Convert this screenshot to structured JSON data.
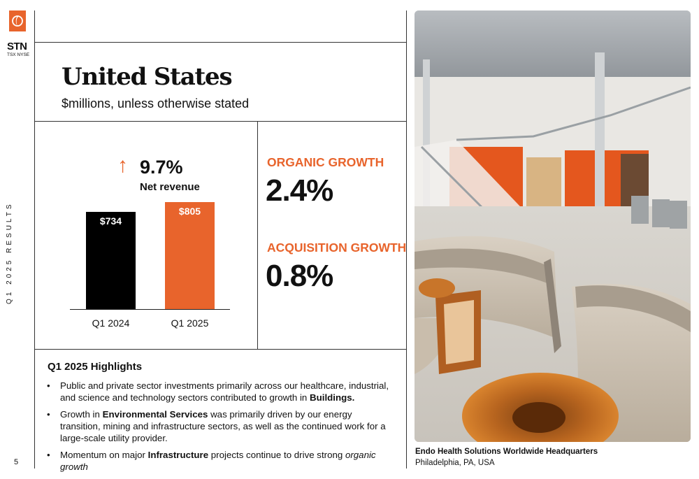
{
  "brand": {
    "ticker": "STN",
    "exchanges": "TSX NYSE",
    "accent_color": "#e8642c",
    "logo_icon": "stantec-logo-icon"
  },
  "sidebar": {
    "section_label": "Q1 2025 RESULTS",
    "page_number": "5"
  },
  "header": {
    "title": "United States",
    "subtitle": "$millions, unless otherwise stated"
  },
  "net_revenue": {
    "change": "9.7%",
    "change_direction_icon": "arrow-up-icon",
    "label": "Net revenue"
  },
  "chart_data": {
    "type": "bar",
    "categories": [
      "Q1 2024",
      "Q1 2025"
    ],
    "values": [
      734,
      805
    ],
    "data_labels": [
      "$734",
      "$805"
    ],
    "colors": [
      "#000000",
      "#e8642c"
    ],
    "ylim": [
      0,
      1000
    ]
  },
  "kpis": [
    {
      "label": "ORGANIC GROWTH",
      "value": "2.4%"
    },
    {
      "label": "ACQUISITION GROWTH",
      "value": "0.8%"
    }
  ],
  "highlights": {
    "title": "Q1 2025 Highlights",
    "items": [
      {
        "pre": "Public and private sector investments primarily across our healthcare, industrial, and science and technology sectors contributed to growth in ",
        "bold": "Buildings.",
        "post": "",
        "post_italic": ""
      },
      {
        "pre": "Growth in ",
        "bold": "Environmental Services",
        "post": " was primarily driven by our energy transition, mining and infrastructure sectors, as well as the continued work for a large-scale utility provider.",
        "post_italic": ""
      },
      {
        "pre": "Momentum on major ",
        "bold": "Infrastructure",
        "post": " projects continue to drive strong ",
        "post_italic": "organic growth"
      }
    ]
  },
  "photo": {
    "caption_title": "Endo Health Solutions Worldwide Headquarters",
    "caption_location": "Philadelphia, PA, USA"
  }
}
